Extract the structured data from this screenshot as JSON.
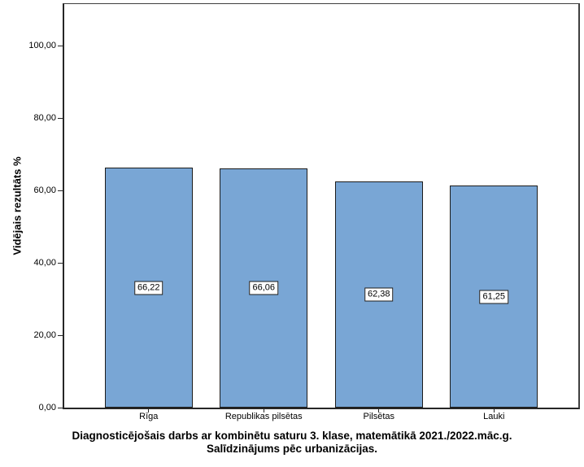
{
  "chart_data": {
    "type": "bar",
    "categories": [
      "Rīga",
      "Republikas pilsētas",
      "Pilsētas",
      "Lauki"
    ],
    "values": [
      66.22,
      66.06,
      62.38,
      61.25
    ],
    "value_labels": [
      "66,22",
      "66,06",
      "62,38",
      "61,25"
    ],
    "title_line1": "Diagnosticējošais darbs ar kombinētu saturu 3. klase, matemātikā 2021./2022.māc.g.",
    "title_line2": "Salīdzinājums pēc urbanizācijas.",
    "ylabel": "Vidējais rezultāts %",
    "xlabel": "",
    "ylim": [
      0,
      100
    ],
    "y_ticks": [
      {
        "value": 0,
        "label": "0,00"
      },
      {
        "value": 20,
        "label": "20,00"
      },
      {
        "value": 40,
        "label": "40,00"
      },
      {
        "value": 60,
        "label": "60,00"
      },
      {
        "value": 80,
        "label": "80,00"
      },
      {
        "value": 100,
        "label": "100,00"
      }
    ],
    "grid": false,
    "legend": null,
    "bar_color": "#79A6D5",
    "bar_border_color": "#1c1c1c",
    "axis_color": "#262626"
  }
}
